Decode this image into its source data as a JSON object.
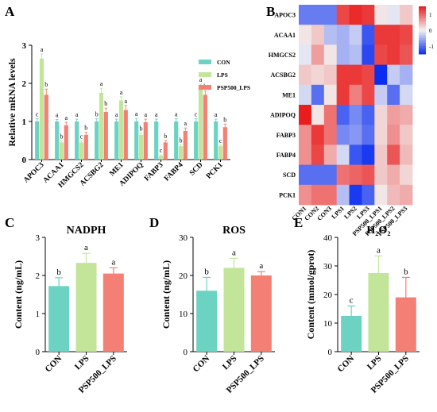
{
  "colors": {
    "CON": "#6cd3c2",
    "LPS": "#c3e59a",
    "PSP500_LPS": "#f48075",
    "heat_low": "#0b2df2",
    "heat_mid": "#f3f3f3",
    "heat_high": "#ea1c1c"
  },
  "panels": {
    "A": "A",
    "B": "B",
    "C": "C",
    "D": "D",
    "E": "E"
  },
  "chart_data": [
    {
      "panel": "A",
      "type": "bar",
      "title": "",
      "ylabel": "Relative mRNA levels",
      "ylim": [
        0,
        3
      ],
      "yticks": [
        0,
        1,
        2,
        3
      ],
      "categories": [
        "APOC3",
        "ACAA1",
        "HMGCS2",
        "ACSBG2",
        "ME1",
        "ADIPOQ",
        "FABP3",
        "FABP4",
        "SCD",
        "PCK1"
      ],
      "legend": [
        "CON",
        "LPS",
        "PSP500_LPS"
      ],
      "series": [
        {
          "name": "CON",
          "values": [
            1.0,
            1.0,
            1.0,
            1.0,
            1.0,
            1.0,
            1.0,
            1.0,
            1.0,
            1.0
          ],
          "errors": [
            0.07,
            0.05,
            0.06,
            0.07,
            0.06,
            0.08,
            0.06,
            0.07,
            0.07,
            0.06
          ],
          "letters": [
            "c",
            "a",
            "a",
            "b",
            "a",
            "a",
            "a",
            "a",
            "c",
            "a"
          ]
        },
        {
          "name": "LPS",
          "values": [
            2.65,
            0.45,
            0.45,
            1.75,
            1.55,
            0.65,
            0.1,
            0.35,
            1.9,
            0.35
          ],
          "errors": [
            0.12,
            0.04,
            0.04,
            0.12,
            0.1,
            0.05,
            0.02,
            0.04,
            0.08,
            0.03
          ],
          "letters": [
            "a",
            "b",
            "c",
            "a",
            "a",
            "b",
            "c",
            "b",
            "a",
            "c"
          ]
        },
        {
          "name": "PSP500_LPS",
          "values": [
            1.7,
            0.9,
            0.65,
            1.25,
            1.3,
            0.98,
            0.45,
            0.75,
            1.7,
            0.85
          ],
          "errors": [
            0.15,
            0.08,
            0.07,
            0.1,
            0.12,
            0.08,
            0.05,
            0.08,
            0.1,
            0.08
          ],
          "letters": [
            "b",
            "a",
            "b",
            "b",
            "a",
            "a",
            "b",
            "a",
            "b",
            "b"
          ]
        }
      ]
    },
    {
      "panel": "B",
      "type": "heatmap",
      "rows": [
        "APOC3",
        "ACAA1",
        "HMGCS2",
        "ACSBG2",
        "ME1",
        "ADIPOQ",
        "FABP3",
        "FABP4",
        "SCD",
        "PCK1"
      ],
      "columns": [
        "CON1",
        "CON2",
        "CON3",
        "LPS1",
        "LPS2",
        "LPS3",
        "PSP500_LPS1",
        "PSP500_LPS2",
        "PSP500_LPS3"
      ],
      "colorbar_ticks": [
        "1",
        "0",
        "-1"
      ],
      "colorbar_range": [
        -1.5,
        1.5
      ],
      "values": [
        [
          -0.9,
          -0.9,
          -0.9,
          1.2,
          1.4,
          1.3,
          0.1,
          -0.1,
          0.3
        ],
        [
          0.1,
          0.3,
          -0.4,
          -0.5,
          -0.3,
          -1.2,
          1.3,
          1.3,
          1.2
        ],
        [
          -0.1,
          0.6,
          0.1,
          -0.5,
          -0.4,
          -1.3,
          1.2,
          1.3,
          1.1
        ],
        [
          0.3,
          0.2,
          0.3,
          1.3,
          1.3,
          1.2,
          -1.5,
          -0.3,
          -0.5
        ],
        [
          -0.2,
          -1.0,
          0.1,
          1.3,
          0.8,
          1.2,
          -0.3,
          -1.0,
          -0.2
        ],
        [
          1.5,
          0.1,
          0.9,
          -1.1,
          -0.8,
          -1.1,
          0.2,
          0.6,
          0.5
        ],
        [
          0.7,
          1.3,
          0.9,
          -0.8,
          -0.7,
          -1.0,
          0.2,
          0.7,
          0.3
        ],
        [
          0.7,
          1.2,
          0.5,
          -0.2,
          -1.2,
          -1.4,
          0.3,
          1.1,
          0.4
        ],
        [
          -1.0,
          -1.0,
          -1.0,
          0.9,
          1.0,
          1.1,
          0.3,
          0.5,
          0.2
        ],
        [
          0.7,
          0.9,
          0.9,
          -0.4,
          -1.4,
          -1.1,
          0.1,
          0.4,
          0.5
        ]
      ]
    },
    {
      "panel": "C",
      "type": "bar",
      "title": "NADPH",
      "ylabel": "Content (ng/mL)",
      "ylim": [
        0,
        3
      ],
      "yticks": [
        0,
        1,
        2,
        3
      ],
      "categories": [
        "CON",
        "LPS",
        "PSP500_LPS"
      ],
      "values": [
        1.72,
        2.33,
        2.05
      ],
      "errors": [
        0.22,
        0.25,
        0.15
      ],
      "letters": [
        "b",
        "a",
        "a"
      ]
    },
    {
      "panel": "D",
      "type": "bar",
      "title": "ROS",
      "ylabel": "Content (ng/mL)",
      "ylim": [
        0,
        30
      ],
      "yticks": [
        0,
        10,
        20,
        30
      ],
      "categories": [
        "CON",
        "LPS",
        "PSP500_LPS"
      ],
      "values": [
        16.0,
        22.0,
        20.0
      ],
      "errors": [
        3.5,
        2.5,
        1.0
      ],
      "letters": [
        "b",
        "a",
        "a"
      ]
    },
    {
      "panel": "E",
      "type": "bar",
      "title": "H₂O₂",
      "ylabel": "Content (mmol/gprot)",
      "ylim": [
        0,
        40
      ],
      "yticks": [
        0,
        10,
        20,
        30,
        40
      ],
      "categories": [
        "CON",
        "LPS",
        "PSP500_LPS"
      ],
      "values": [
        12.5,
        27.5,
        19.0
      ],
      "errors": [
        3.5,
        6.0,
        7.0
      ],
      "letters": [
        "c",
        "a",
        "b"
      ]
    }
  ]
}
